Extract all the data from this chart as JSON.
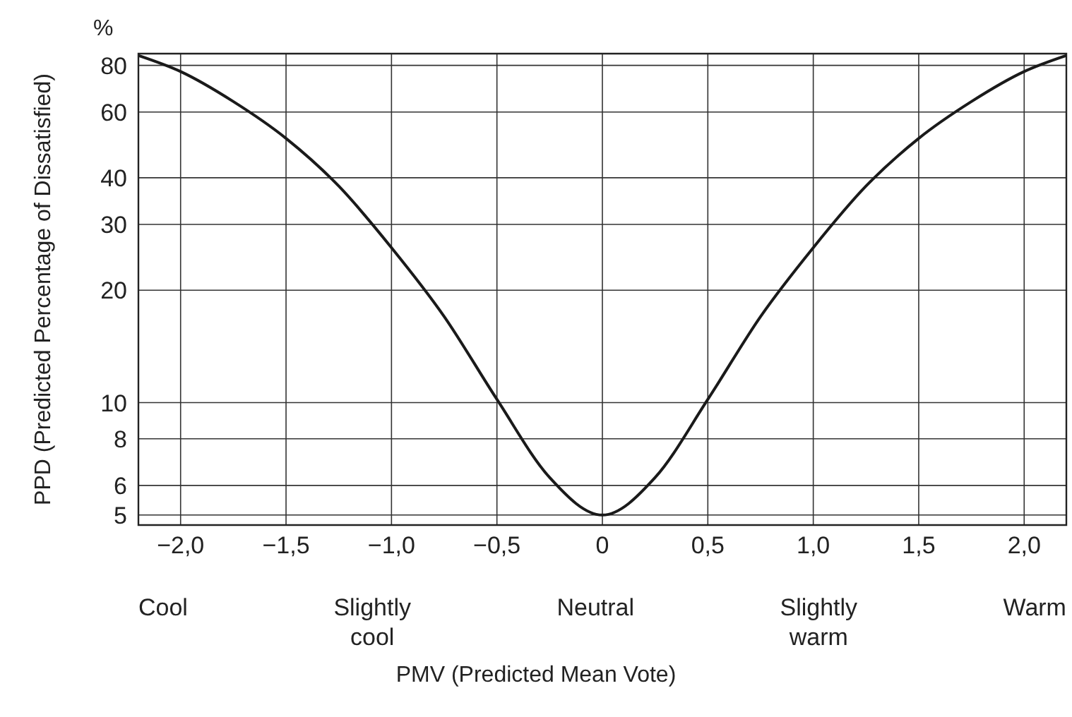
{
  "chart_data": {
    "type": "line",
    "xlabel": "PMV (Predicted Mean Vote)",
    "ylabel": "PPD (Predicted Percentage of Dissatisfied)",
    "annotations": [
      "%",
      "Cool",
      "Slightly cool",
      "Neutral",
      "Slightly warm",
      "Warm"
    ],
    "x": [
      -2.2,
      -2,
      -1.75,
      -1.5,
      -1.25,
      -1,
      -0.75,
      -0.5,
      -0.25,
      0,
      0.25,
      0.5,
      0.75,
      1,
      1.25,
      1.5,
      1.75,
      2,
      2.2
    ],
    "series": [
      {
        "color": "#1a1a1a",
        "values": [
          85,
          77,
          64,
          51,
          38,
          26,
          17,
          10.2,
          6.3,
          5,
          6.3,
          10.2,
          17,
          26,
          38,
          51,
          64,
          77,
          85
        ]
      }
    ],
    "log": "y",
    "xlim": [
      -2.2,
      2.2
    ],
    "ylim": [
      4.7,
      86
    ],
    "xticks": [
      {
        "value": -2,
        "label": "−2,0"
      },
      {
        "value": -1.5,
        "label": "−1,5"
      },
      {
        "value": -1,
        "label": "−1,0"
      },
      {
        "value": -0.5,
        "label": "−0,5"
      },
      0,
      {
        "value": 0.5,
        "label": "0,5"
      },
      {
        "value": 1,
        "label": "1,0"
      },
      {
        "value": 1.5,
        "label": "1,5"
      },
      {
        "value": 2,
        "label": "2,0"
      }
    ],
    "yticks": [
      5,
      6,
      8,
      10,
      20,
      30,
      40,
      60,
      80
    ],
    "grid": true,
    "marker": "none",
    "line_style": "solid"
  }
}
